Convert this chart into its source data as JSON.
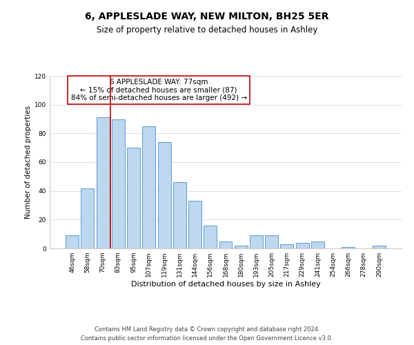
{
  "title": "6, APPLESLADE WAY, NEW MILTON, BH25 5ER",
  "subtitle": "Size of property relative to detached houses in Ashley",
  "xlabel": "Distribution of detached houses by size in Ashley",
  "ylabel": "Number of detached properties",
  "bar_labels": [
    "46sqm",
    "58sqm",
    "70sqm",
    "83sqm",
    "95sqm",
    "107sqm",
    "119sqm",
    "131sqm",
    "144sqm",
    "156sqm",
    "168sqm",
    "180sqm",
    "193sqm",
    "205sqm",
    "217sqm",
    "229sqm",
    "241sqm",
    "254sqm",
    "266sqm",
    "278sqm",
    "290sqm"
  ],
  "bar_values": [
    9,
    42,
    91,
    90,
    70,
    85,
    74,
    46,
    33,
    16,
    5,
    2,
    9,
    9,
    3,
    4,
    5,
    0,
    1,
    0,
    2
  ],
  "bar_color": "#bdd7ee",
  "bar_edge_color": "#5b9bd5",
  "vline_color": "#c00000",
  "vline_x": 2.5,
  "annotation_title": "6 APPLESLADE WAY: 77sqm",
  "annotation_line1": "← 15% of detached houses are smaller (87)",
  "annotation_line2": "84% of semi-detached houses are larger (492) →",
  "annotation_box_color": "#ffffff",
  "annotation_box_edge": "#c00000",
  "ylim": [
    0,
    120
  ],
  "yticks": [
    0,
    20,
    40,
    60,
    80,
    100,
    120
  ],
  "footnote1": "Contains HM Land Registry data © Crown copyright and database right 2024.",
  "footnote2": "Contains public sector information licensed under the Open Government Licence v3.0.",
  "background_color": "#ffffff",
  "grid_color": "#d9e1f2",
  "title_fontsize": 10,
  "subtitle_fontsize": 8.5,
  "xlabel_fontsize": 8,
  "ylabel_fontsize": 7.5,
  "tick_fontsize": 6.5,
  "annotation_fontsize": 7.5,
  "footnote_fontsize": 6
}
